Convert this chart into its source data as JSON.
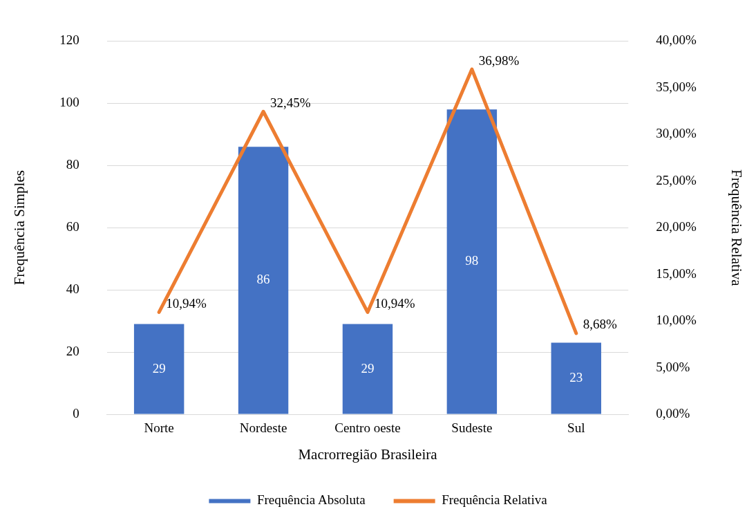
{
  "chart_data": {
    "type": "bar",
    "xlabel": "Macrorregião Brasileira",
    "ylabel": "Frequência Simples",
    "y2label": "Frequência Relativa",
    "categories": [
      "Norte",
      "Nordeste",
      "Centro oeste",
      "Sudeste",
      "Sul"
    ],
    "series": [
      {
        "name": "Frequência Absoluta",
        "color": "#4472c4",
        "values": [
          29,
          86,
          29,
          98,
          23
        ],
        "value_labels": [
          "29",
          "86",
          "29",
          "98",
          "23"
        ]
      },
      {
        "name": "Frequência Relativa",
        "type": "line",
        "axis": "y2",
        "color": "#ed7d31",
        "values": [
          10.94,
          32.45,
          10.94,
          36.98,
          8.68
        ],
        "value_labels": [
          "10,94%",
          "32,45%",
          "10,94%",
          "36,98%",
          "8,68%"
        ]
      }
    ],
    "ylim": [
      0,
      120
    ],
    "yticks": [
      0,
      20,
      40,
      60,
      80,
      100,
      120
    ],
    "y2lim": [
      0,
      40
    ],
    "y2ticks": [
      {
        "value": 0,
        "label": "0,00%"
      },
      {
        "value": 5,
        "label": "5,00%"
      },
      {
        "value": 10,
        "label": "10,00%"
      },
      {
        "value": 15,
        "label": "15,00%"
      },
      {
        "value": 20,
        "label": "20,00%"
      },
      {
        "value": 25,
        "label": "25,00%"
      },
      {
        "value": 30,
        "label": "30,00%"
      },
      {
        "value": 35,
        "label": "35,00%"
      },
      {
        "value": 40,
        "label": "40,00%"
      }
    ],
    "grid": "y",
    "legend": "bottom",
    "marker": "none",
    "line_style": "solid"
  }
}
